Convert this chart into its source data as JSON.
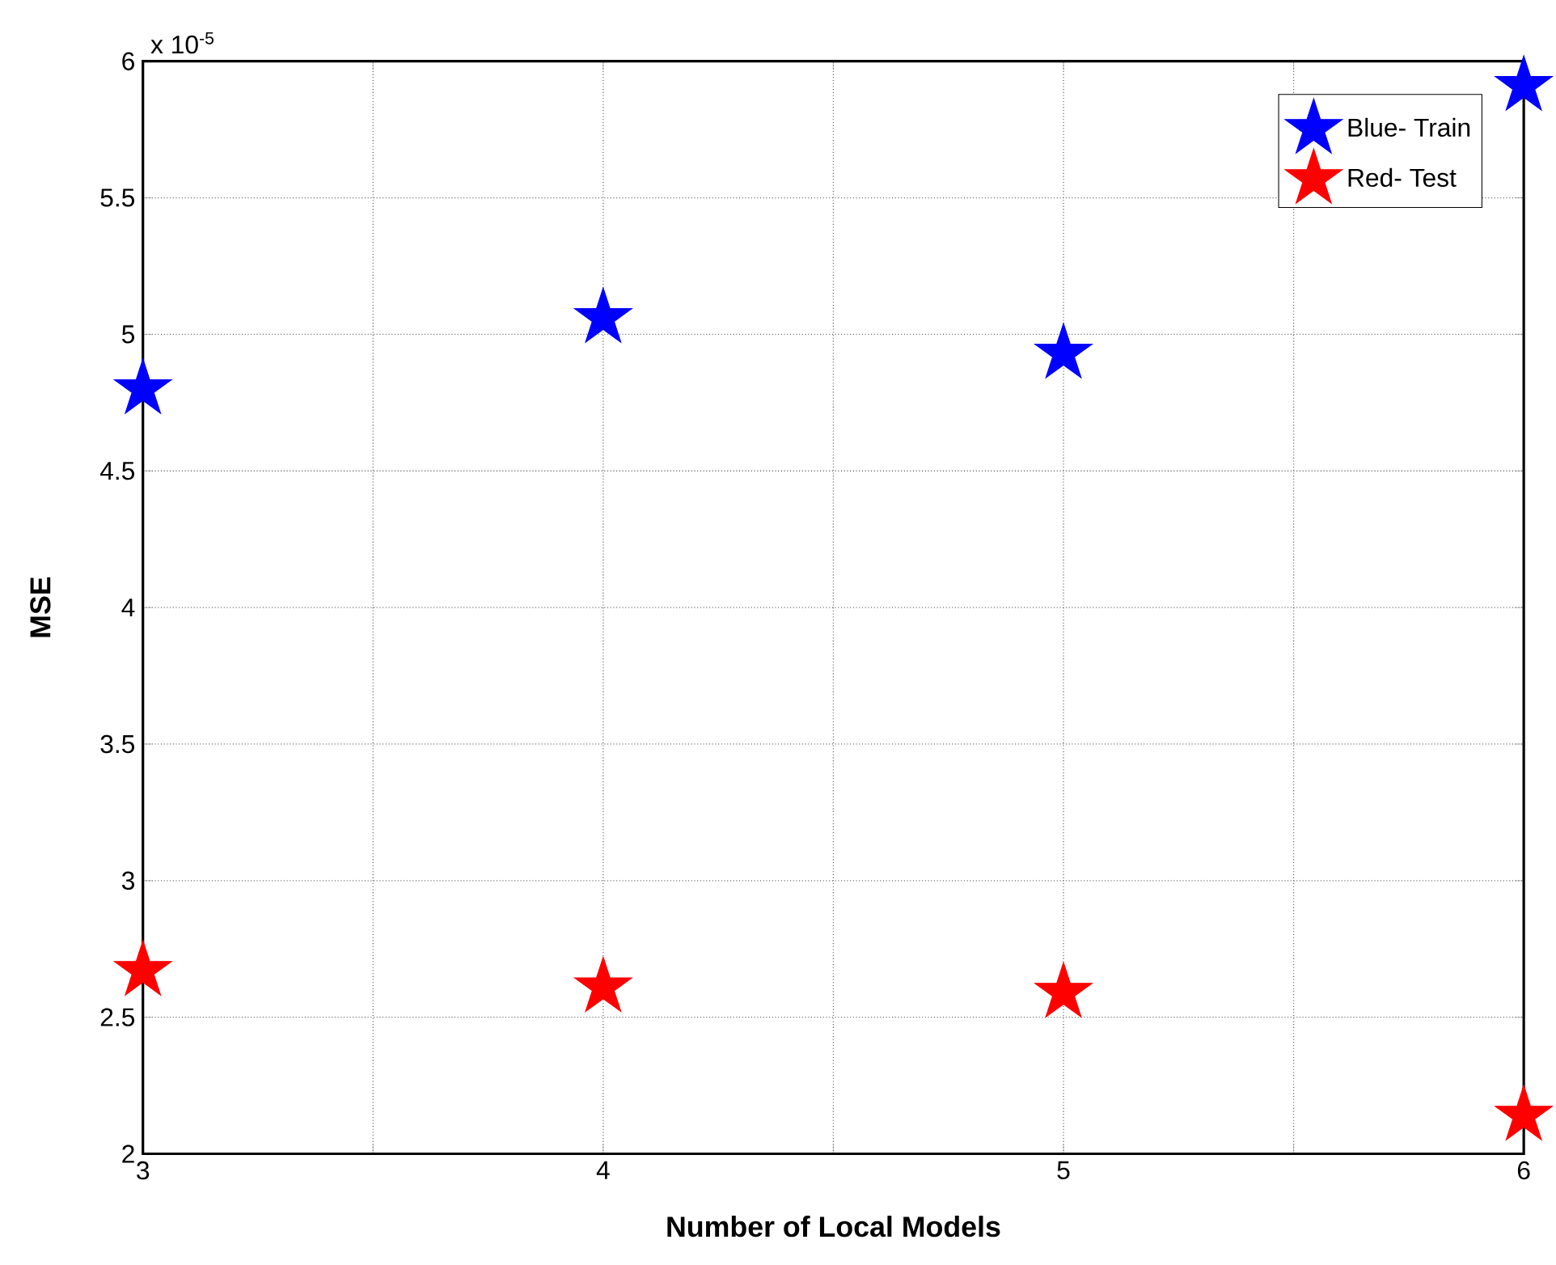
{
  "chart_data": {
    "type": "scatter",
    "xlabel": "Number of Local Models",
    "ylabel": "MSE",
    "annotations": [
      "x 10$^{-5}$"
    ],
    "x": [
      3,
      4,
      5,
      6
    ],
    "series": [
      {
        "name": "Blue- Train",
        "color": "#0000ff",
        "values": [
          4.8,
          5.06,
          4.93,
          5.91
        ]
      },
      {
        "name": "Red- Test",
        "color": "#ff0000",
        "values": [
          2.67,
          2.61,
          2.59,
          2.14
        ]
      }
    ],
    "xlim": [
      3,
      6
    ],
    "xticks": [
      3,
      {
        "value": 3.5,
        "label": null
      },
      4,
      {
        "value": 4.5,
        "label": null
      },
      5,
      {
        "value": 5.5,
        "label": null
      },
      6
    ],
    "ylim": [
      2,
      6
    ],
    "yticks": [
      2,
      2.5,
      3,
      3.5,
      4,
      4.5,
      5,
      5.5,
      6
    ],
    "grid": true,
    "legend": "top right",
    "marker": "star"
  }
}
